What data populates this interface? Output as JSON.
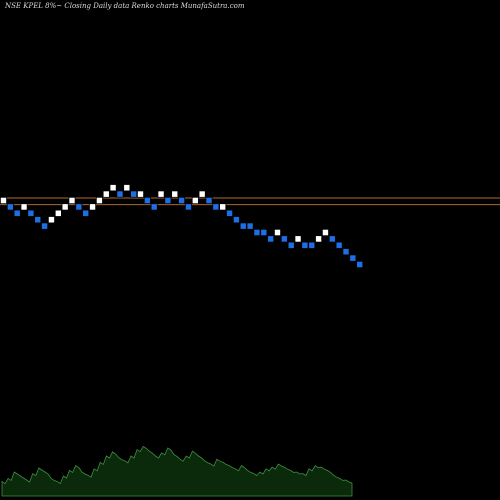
{
  "chart_data": {
    "type": "renko",
    "title": "NSE KPEL  8%~  Closing Daily data  Renko  charts MunafaSutra.com",
    "colors": {
      "background": "#000000",
      "up_brick": "#ffffff",
      "down_brick": "#1e6fe6",
      "reference_line": "#b06a2a",
      "volume_fill": "#0b2a0b",
      "volume_line": "#3d8f3d",
      "label_text": "#cfcfcf"
    },
    "reference_lines": [
      {
        "name": "upper-line",
        "value": 0.4
      },
      {
        "name": "lower-line",
        "value": -0.65
      }
    ],
    "bricks": [
      {
        "dir": "up",
        "level": 0
      },
      {
        "dir": "down",
        "level": -1
      },
      {
        "dir": "down",
        "level": -2
      },
      {
        "dir": "up",
        "level": -1
      },
      {
        "dir": "down",
        "level": -2
      },
      {
        "dir": "down",
        "level": -3
      },
      {
        "dir": "down",
        "level": -4
      },
      {
        "dir": "up",
        "level": -3
      },
      {
        "dir": "up",
        "level": -2
      },
      {
        "dir": "up",
        "level": -1
      },
      {
        "dir": "up",
        "level": 0
      },
      {
        "dir": "down",
        "level": -1
      },
      {
        "dir": "down",
        "level": -2
      },
      {
        "dir": "up",
        "level": -1
      },
      {
        "dir": "up",
        "level": 0
      },
      {
        "dir": "up",
        "level": 1
      },
      {
        "dir": "up",
        "level": 2
      },
      {
        "dir": "down",
        "level": 1
      },
      {
        "dir": "up",
        "level": 2
      },
      {
        "dir": "down",
        "level": 1
      },
      {
        "dir": "up",
        "level": 1
      },
      {
        "dir": "down",
        "level": 0
      },
      {
        "dir": "down",
        "level": -1
      },
      {
        "dir": "up",
        "level": 1
      },
      {
        "dir": "down",
        "level": 0
      },
      {
        "dir": "up",
        "level": 1
      },
      {
        "dir": "down",
        "level": 0
      },
      {
        "dir": "down",
        "level": -1
      },
      {
        "dir": "up",
        "level": 0
      },
      {
        "dir": "up",
        "level": 1
      },
      {
        "dir": "down",
        "level": 0
      },
      {
        "dir": "down",
        "level": -1
      },
      {
        "dir": "up",
        "level": -1
      },
      {
        "dir": "down",
        "level": -2
      },
      {
        "dir": "down",
        "level": -3
      },
      {
        "dir": "down",
        "level": -4
      },
      {
        "dir": "down",
        "level": -4
      },
      {
        "dir": "down",
        "level": -5
      },
      {
        "dir": "down",
        "level": -5
      },
      {
        "dir": "down",
        "level": -6
      },
      {
        "dir": "up",
        "level": -5
      },
      {
        "dir": "down",
        "level": -6
      },
      {
        "dir": "down",
        "level": -7
      },
      {
        "dir": "up",
        "level": -6
      },
      {
        "dir": "down",
        "level": -7
      },
      {
        "dir": "down",
        "level": -7
      },
      {
        "dir": "up",
        "level": -6
      },
      {
        "dir": "up",
        "level": -5
      },
      {
        "dir": "down",
        "level": -6
      },
      {
        "dir": "down",
        "level": -7
      },
      {
        "dir": "down",
        "level": -8
      },
      {
        "dir": "down",
        "level": -9
      },
      {
        "dir": "down",
        "level": -10
      }
    ],
    "volume": [
      0.18,
      0.22,
      0.3,
      0.25,
      0.2,
      0.28,
      0.35,
      0.3,
      0.22,
      0.18,
      0.25,
      0.32,
      0.38,
      0.3,
      0.26,
      0.34,
      0.42,
      0.5,
      0.55,
      0.48,
      0.44,
      0.5,
      0.58,
      0.62,
      0.56,
      0.5,
      0.54,
      0.6,
      0.52,
      0.46,
      0.5,
      0.56,
      0.5,
      0.44,
      0.4,
      0.46,
      0.42,
      0.38,
      0.34,
      0.38,
      0.32,
      0.28,
      0.3,
      0.34,
      0.36,
      0.4,
      0.36,
      0.32,
      0.3,
      0.28,
      0.34,
      0.38,
      0.36,
      0.32,
      0.26,
      0.22,
      0.2,
      0.16
    ]
  }
}
